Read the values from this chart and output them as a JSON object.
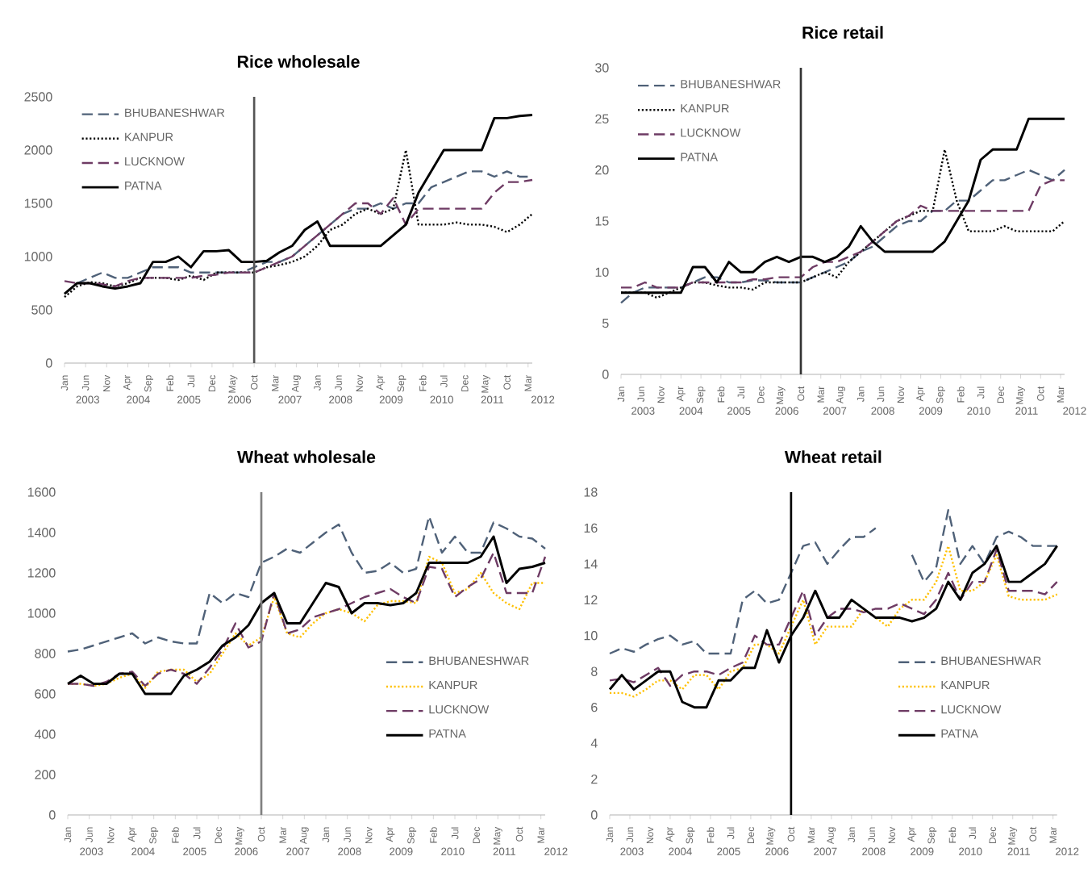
{
  "chart_data": [
    {
      "type": "line",
      "title": "Rice wholesale",
      "legend": "top left",
      "x": [
        "2003-01",
        "2003-04",
        "2003-07",
        "2003-10",
        "2004-01",
        "2004-04",
        "2004-07",
        "2004-10",
        "2005-01",
        "2005-04",
        "2005-07",
        "2005-10",
        "2006-01",
        "2006-04",
        "2006-07",
        "2006-10",
        "2007-01",
        "2007-04",
        "2007-07",
        "2007-10",
        "2008-01",
        "2008-04",
        "2008-07",
        "2008-10",
        "2009-01",
        "2009-04",
        "2009-07",
        "2009-10",
        "2010-01",
        "2010-04",
        "2010-07",
        "2010-10",
        "2011-01",
        "2011-04",
        "2011-07",
        "2011-10",
        "2012-01",
        "2012-04"
      ],
      "xlim": [
        "2003-01",
        "2012-04"
      ],
      "xticks": [
        {
          "value": "2003-01",
          "label": "Jan"
        },
        {
          "value": "2003-06",
          "label": "Jun"
        },
        {
          "value": "2003-11",
          "label": "Nov"
        },
        {
          "value": "2004-04",
          "label": "Apr"
        },
        {
          "value": "2004-09",
          "label": "Sep"
        },
        {
          "value": "2005-02",
          "label": "Feb"
        },
        {
          "value": "2005-07",
          "label": "Jul"
        },
        {
          "value": "2005-12",
          "label": "Dec"
        },
        {
          "value": "2006-05",
          "label": "May"
        },
        {
          "value": "2006-10",
          "label": "Oct"
        },
        {
          "value": "2007-03",
          "label": "Mar"
        },
        {
          "value": "2007-08",
          "label": "Aug"
        },
        {
          "value": "2008-01",
          "label": "Jan"
        },
        {
          "value": "2008-06",
          "label": "Jun"
        },
        {
          "value": "2008-11",
          "label": "Nov"
        },
        {
          "value": "2009-04",
          "label": "Apr"
        },
        {
          "value": "2009-09",
          "label": "Sep"
        },
        {
          "value": "2010-02",
          "label": "Feb"
        },
        {
          "value": "2010-07",
          "label": "Jul"
        },
        {
          "value": "2010-12",
          "label": "Dec"
        },
        {
          "value": "2011-05",
          "label": "May"
        },
        {
          "value": "2011-10",
          "label": "Oct"
        },
        {
          "value": "2012-03",
          "label": "Mar"
        }
      ],
      "ylim": [
        0,
        2500
      ],
      "yticks": [
        0,
        500,
        1000,
        1500,
        2000,
        2500
      ],
      "ref_lines": [
        {
          "axis": "x",
          "value": "2006-10",
          "color": "#555555"
        }
      ],
      "annotations": [
        "2003",
        "2004",
        "2005",
        "2006",
        "2007",
        "2008",
        "2009",
        "2010",
        "2011",
        "2012"
      ],
      "series": [
        {
          "name": "BHUBANESHWAR",
          "color": "#4f6178",
          "line_style": "dashed",
          "values": [
            650,
            750,
            800,
            850,
            800,
            800,
            850,
            900,
            900,
            900,
            850,
            850,
            850,
            850,
            850,
            900,
            950,
            950,
            1000,
            1100,
            1200,
            1300,
            1400,
            1450,
            1450,
            1500,
            1450,
            1500,
            1500,
            1650,
            1700,
            1750,
            1800,
            1800,
            1750,
            1800,
            1750,
            1750
          ]
        },
        {
          "name": "KANPUR",
          "color": "#000000",
          "line_style": "dotted",
          "values": [
            620,
            720,
            760,
            750,
            720,
            750,
            800,
            800,
            800,
            780,
            820,
            780,
            850,
            850,
            850,
            850,
            900,
            920,
            950,
            1000,
            1100,
            1250,
            1300,
            1400,
            1450,
            1400,
            1450,
            2000,
            1300,
            1300,
            1300,
            1320,
            1300,
            1300,
            1280,
            1230,
            1300,
            1400
          ]
        },
        {
          "name": "LUCKNOW",
          "color": "#6e3b64",
          "line_style": "dashed",
          "values": [
            770,
            750,
            750,
            740,
            720,
            770,
            800,
            800,
            800,
            800,
            800,
            820,
            830,
            850,
            850,
            850,
            900,
            950,
            1000,
            1100,
            1200,
            1300,
            1400,
            1500,
            1500,
            1400,
            1550,
            1300,
            1450,
            1450,
            1450,
            1450,
            1450,
            1450,
            1600,
            1700,
            1700,
            1720
          ]
        },
        {
          "name": "PATNA",
          "color": "#000000",
          "line_style": "solid",
          "values": [
            650,
            750,
            750,
            720,
            700,
            720,
            750,
            950,
            950,
            1000,
            900,
            1050,
            1050,
            1060,
            950,
            950,
            960,
            1040,
            1100,
            1250,
            1330,
            1100,
            1100,
            1100,
            1100,
            1100,
            1200,
            1300,
            1600,
            1800,
            2000,
            2000,
            2000,
            2000,
            2300,
            2300,
            2320,
            2330
          ]
        }
      ]
    },
    {
      "type": "line",
      "title": "Rice retail",
      "legend": "top left",
      "x": [
        "2003-01",
        "2003-04",
        "2003-07",
        "2003-10",
        "2004-01",
        "2004-04",
        "2004-07",
        "2004-10",
        "2005-01",
        "2005-04",
        "2005-07",
        "2005-10",
        "2006-01",
        "2006-04",
        "2006-07",
        "2006-10",
        "2007-01",
        "2007-04",
        "2007-07",
        "2007-10",
        "2008-01",
        "2008-04",
        "2008-07",
        "2008-10",
        "2009-01",
        "2009-04",
        "2009-07",
        "2009-10",
        "2010-01",
        "2010-04",
        "2010-07",
        "2010-10",
        "2011-01",
        "2011-04",
        "2011-07",
        "2011-10",
        "2012-01",
        "2012-04"
      ],
      "xlim": [
        "2003-01",
        "2012-04"
      ],
      "xticks": [
        {
          "value": "2003-01",
          "label": "Jan"
        },
        {
          "value": "2003-06",
          "label": "Jun"
        },
        {
          "value": "2003-11",
          "label": "Nov"
        },
        {
          "value": "2004-04",
          "label": "Apr"
        },
        {
          "value": "2004-09",
          "label": "Sep"
        },
        {
          "value": "2005-02",
          "label": "Feb"
        },
        {
          "value": "2005-07",
          "label": "Jul"
        },
        {
          "value": "2005-12",
          "label": "Dec"
        },
        {
          "value": "2006-05",
          "label": "May"
        },
        {
          "value": "2006-10",
          "label": "Oct"
        },
        {
          "value": "2007-03",
          "label": "Mar"
        },
        {
          "value": "2007-08",
          "label": "Aug"
        },
        {
          "value": "2008-01",
          "label": "Jan"
        },
        {
          "value": "2008-06",
          "label": "Jun"
        },
        {
          "value": "2008-11",
          "label": "Nov"
        },
        {
          "value": "2009-04",
          "label": "Apr"
        },
        {
          "value": "2009-09",
          "label": "Sep"
        },
        {
          "value": "2010-02",
          "label": "Feb"
        },
        {
          "value": "2010-07",
          "label": "Jul"
        },
        {
          "value": "2010-12",
          "label": "Dec"
        },
        {
          "value": "2011-05",
          "label": "May"
        },
        {
          "value": "2011-10",
          "label": "Oct"
        },
        {
          "value": "2012-03",
          "label": "Mar"
        }
      ],
      "ylim": [
        0,
        30
      ],
      "yticks": [
        0,
        5,
        10,
        15,
        20,
        25,
        30
      ],
      "ref_lines": [
        {
          "axis": "x",
          "value": "2006-10",
          "color": "#333333"
        }
      ],
      "annotations": [
        "2003",
        "2004",
        "2005",
        "2006",
        "2007",
        "2008",
        "2009",
        "2010",
        "2011",
        "2012"
      ],
      "series": [
        {
          "name": "BHUBANESHWAR",
          "color": "#4f6178",
          "line_style": "dashed",
          "values": [
            7,
            8,
            8.5,
            8.5,
            8.5,
            8.5,
            9,
            9.5,
            9.5,
            9,
            9,
            9.2,
            9.2,
            9,
            9,
            9,
            9.5,
            10,
            10.5,
            11,
            12,
            12.5,
            13.5,
            14.5,
            15,
            15,
            16,
            16,
            17,
            17,
            18,
            19,
            19,
            19.5,
            20,
            19.5,
            19,
            20
          ]
        },
        {
          "name": "KANPUR",
          "color": "#000000",
          "line_style": "dotted",
          "values": [
            8,
            8,
            8,
            7.5,
            8,
            8.5,
            9,
            9,
            8.7,
            8.5,
            8.5,
            8.3,
            9,
            9,
            9,
            9,
            9.5,
            10,
            9.5,
            11,
            12,
            13,
            14,
            15,
            15.5,
            16,
            16,
            22,
            17,
            14,
            14,
            14,
            14.5,
            14,
            14,
            14,
            14,
            15
          ]
        },
        {
          "name": "LUCKNOW",
          "color": "#6e3b64",
          "line_style": "dashed",
          "values": [
            8.5,
            8.5,
            9,
            8.5,
            8.5,
            8.5,
            9,
            9,
            9,
            9,
            9,
            9.3,
            9.3,
            9.5,
            9.5,
            9.5,
            10.5,
            11,
            11,
            11.5,
            12,
            13,
            14,
            15,
            15.5,
            16.5,
            16,
            16,
            16,
            16,
            16,
            16,
            16,
            16,
            16,
            18.5,
            19,
            19
          ]
        },
        {
          "name": "PATNA",
          "color": "#000000",
          "line_style": "solid",
          "values": [
            8,
            8,
            8,
            8,
            8,
            8,
            10.5,
            10.5,
            9,
            11,
            10,
            10,
            11,
            11.5,
            11,
            11.5,
            11.5,
            11,
            11.5,
            12.5,
            14.5,
            13,
            12,
            12,
            12,
            12,
            12,
            13,
            15,
            17,
            21,
            22,
            22,
            22,
            25,
            25,
            25,
            25
          ]
        }
      ]
    },
    {
      "type": "line",
      "title": "Wheat wholesale",
      "legend": "right",
      "x": [
        "2003-01",
        "2003-04",
        "2003-07",
        "2003-10",
        "2004-01",
        "2004-04",
        "2004-07",
        "2004-10",
        "2005-01",
        "2005-04",
        "2005-07",
        "2005-10",
        "2006-01",
        "2006-04",
        "2006-07",
        "2006-10",
        "2007-01",
        "2007-04",
        "2007-07",
        "2007-10",
        "2008-01",
        "2008-04",
        "2008-07",
        "2008-10",
        "2009-01",
        "2009-04",
        "2009-07",
        "2009-10",
        "2010-01",
        "2010-04",
        "2010-07",
        "2010-10",
        "2011-01",
        "2011-04",
        "2011-07",
        "2011-10",
        "2012-01",
        "2012-04"
      ],
      "xlim": [
        "2003-01",
        "2012-04"
      ],
      "xticks": [
        {
          "value": "2003-01",
          "label": "Jan"
        },
        {
          "value": "2003-06",
          "label": "Jun"
        },
        {
          "value": "2003-11",
          "label": "Nov"
        },
        {
          "value": "2004-04",
          "label": "Apr"
        },
        {
          "value": "2004-09",
          "label": "Sep"
        },
        {
          "value": "2005-02",
          "label": "Feb"
        },
        {
          "value": "2005-07",
          "label": "Jul"
        },
        {
          "value": "2005-12",
          "label": "Dec"
        },
        {
          "value": "2006-05",
          "label": "May"
        },
        {
          "value": "2006-10",
          "label": "Oct"
        },
        {
          "value": "2007-03",
          "label": "Mar"
        },
        {
          "value": "2007-08",
          "label": "Aug"
        },
        {
          "value": "2008-01",
          "label": "Jan"
        },
        {
          "value": "2008-06",
          "label": "Jun"
        },
        {
          "value": "2008-11",
          "label": "Nov"
        },
        {
          "value": "2009-04",
          "label": "Apr"
        },
        {
          "value": "2009-09",
          "label": "Sep"
        },
        {
          "value": "2010-02",
          "label": "Feb"
        },
        {
          "value": "2010-07",
          "label": "Jul"
        },
        {
          "value": "2010-12",
          "label": "Dec"
        },
        {
          "value": "2011-05",
          "label": "May"
        },
        {
          "value": "2011-10",
          "label": "Oct"
        },
        {
          "value": "2012-03",
          "label": "Mar"
        }
      ],
      "ylim": [
        0,
        1600
      ],
      "yticks": [
        0,
        200,
        400,
        600,
        800,
        1000,
        1200,
        1400,
        1600
      ],
      "ref_lines": [
        {
          "axis": "x",
          "value": "2006-10",
          "color": "#808080"
        }
      ],
      "annotations": [
        "2003",
        "2004",
        "2005",
        "2006",
        "2007",
        "2008",
        "2009",
        "2010",
        "2011",
        "2012"
      ],
      "series": [
        {
          "name": "BHUBANESHWAR",
          "color": "#4f6178",
          "line_style": "dashed",
          "values": [
            810,
            820,
            840,
            860,
            880,
            900,
            850,
            880,
            860,
            850,
            850,
            1100,
            1050,
            1100,
            1080,
            1250,
            1280,
            1320,
            1300,
            1350,
            1400,
            1440,
            1300,
            1200,
            1210,
            1250,
            1200,
            1220,
            1480,
            1300,
            1380,
            1300,
            1300,
            1450,
            1420,
            1380,
            1370,
            1320
          ]
        },
        {
          "name": "KANPUR",
          "color": "#ffc000",
          "line_style": "dotted",
          "values": [
            650,
            650,
            640,
            650,
            680,
            700,
            630,
            710,
            720,
            720,
            660,
            700,
            800,
            900,
            840,
            880,
            1080,
            900,
            880,
            950,
            1000,
            1020,
            1000,
            960,
            1040,
            1060,
            1060,
            1050,
            1280,
            1250,
            1100,
            1120,
            1200,
            1100,
            1050,
            1020,
            1150,
            1150
          ]
        },
        {
          "name": "LUCKNOW",
          "color": "#6e3b64",
          "line_style": "dashed",
          "values": [
            650,
            650,
            640,
            660,
            700,
            710,
            640,
            700,
            720,
            700,
            650,
            730,
            820,
            950,
            830,
            860,
            1100,
            900,
            920,
            980,
            1000,
            1020,
            1050,
            1080,
            1100,
            1120,
            1080,
            1050,
            1230,
            1220,
            1080,
            1130,
            1170,
            1300,
            1100,
            1100,
            1100,
            1280
          ]
        },
        {
          "name": "PATNA",
          "color": "#000000",
          "line_style": "solid",
          "values": [
            650,
            690,
            650,
            650,
            700,
            700,
            600,
            600,
            600,
            690,
            720,
            760,
            840,
            880,
            940,
            1050,
            1100,
            950,
            950,
            1050,
            1150,
            1130,
            1000,
            1050,
            1050,
            1040,
            1050,
            1100,
            1250,
            1250,
            1250,
            1250,
            1280,
            1380,
            1150,
            1220,
            1230,
            1250
          ]
        }
      ]
    },
    {
      "type": "line",
      "title": "Wheat retail",
      "legend": "right",
      "x": [
        "2003-01",
        "2003-04",
        "2003-07",
        "2003-10",
        "2004-01",
        "2004-04",
        "2004-07",
        "2004-10",
        "2005-01",
        "2005-04",
        "2005-07",
        "2005-10",
        "2006-01",
        "2006-04",
        "2006-07",
        "2006-10",
        "2007-01",
        "2007-04",
        "2007-07",
        "2007-10",
        "2008-01",
        "2008-04",
        "2008-07",
        "2008-10",
        "2009-01",
        "2009-04",
        "2009-07",
        "2009-10",
        "2010-01",
        "2010-04",
        "2010-07",
        "2010-10",
        "2011-01",
        "2011-04",
        "2011-07",
        "2011-10",
        "2012-01",
        "2012-04"
      ],
      "xlim": [
        "2003-01",
        "2012-04"
      ],
      "xticks": [
        {
          "value": "2003-01",
          "label": "Jan"
        },
        {
          "value": "2003-06",
          "label": "Jun"
        },
        {
          "value": "2003-11",
          "label": "Nov"
        },
        {
          "value": "2004-04",
          "label": "Apr"
        },
        {
          "value": "2004-09",
          "label": "Sep"
        },
        {
          "value": "2005-02",
          "label": "Feb"
        },
        {
          "value": "2005-07",
          "label": "Jul"
        },
        {
          "value": "2005-12",
          "label": "Dec"
        },
        {
          "value": "2006-05",
          "label": "May"
        },
        {
          "value": "2006-10",
          "label": "Oct"
        },
        {
          "value": "2007-03",
          "label": "Mar"
        },
        {
          "value": "2007-08",
          "label": "Aug"
        },
        {
          "value": "2008-01",
          "label": "Jan"
        },
        {
          "value": "2008-06",
          "label": "Jun"
        },
        {
          "value": "2008-11",
          "label": "Nov"
        },
        {
          "value": "2009-04",
          "label": "Apr"
        },
        {
          "value": "2009-09",
          "label": "Sep"
        },
        {
          "value": "2010-02",
          "label": "Feb"
        },
        {
          "value": "2010-07",
          "label": "Jul"
        },
        {
          "value": "2010-12",
          "label": "Dec"
        },
        {
          "value": "2011-05",
          "label": "May"
        },
        {
          "value": "2011-10",
          "label": "Oct"
        },
        {
          "value": "2012-03",
          "label": "Mar"
        }
      ],
      "ylim": [
        0,
        18
      ],
      "yticks": [
        0,
        2,
        4,
        6,
        8,
        10,
        12,
        14,
        16,
        18
      ],
      "ref_lines": [
        {
          "axis": "x",
          "value": "2006-10",
          "color": "#000000"
        }
      ],
      "annotations": [
        "2003",
        "2004",
        "2005",
        "2006",
        "2007",
        "2008",
        "2009",
        "2010",
        "2011",
        "2012"
      ],
      "series": [
        {
          "name": "BHUBANESHWAR",
          "color": "#4f6178",
          "line_style": "dashed",
          "values": [
            9,
            9.3,
            9.1,
            9.5,
            9.8,
            10,
            9.5,
            9.7,
            9,
            9,
            9,
            12,
            12.5,
            11.8,
            12,
            13.5,
            15,
            15.2,
            14,
            14.8,
            15.5,
            15.5,
            16,
            null,
            null,
            14.5,
            13,
            13.8,
            17,
            14,
            15,
            14,
            15.5,
            15.8,
            15.5,
            15,
            15,
            15
          ]
        },
        {
          "name": "KANPUR",
          "color": "#ffc000",
          "line_style": "dotted",
          "values": [
            6.8,
            6.8,
            6.6,
            7,
            7.5,
            7.5,
            7,
            7.8,
            7.8,
            7,
            8,
            8.2,
            9.5,
            9.5,
            9,
            10.5,
            12,
            9.5,
            10.5,
            10.5,
            10.5,
            11.5,
            11,
            10.5,
            11.5,
            12,
            12,
            13,
            15,
            12.5,
            12.5,
            13,
            14.5,
            12.2,
            12,
            12,
            12,
            12.3
          ]
        },
        {
          "name": "LUCKNOW",
          "color": "#6e3b64",
          "line_style": "dashed",
          "values": [
            7.5,
            7.6,
            7.4,
            7.8,
            8.2,
            7.2,
            7.8,
            8,
            8,
            7.8,
            8.2,
            8.5,
            10,
            9.5,
            9.5,
            11,
            12.5,
            10,
            11,
            11.5,
            11.5,
            11.3,
            11.5,
            11.5,
            11.8,
            11.5,
            11.2,
            12,
            13.5,
            12,
            13,
            13,
            14.8,
            12.5,
            12.5,
            12.5,
            12.3,
            13
          ]
        },
        {
          "name": "PATNA",
          "color": "#000000",
          "line_style": "solid",
          "values": [
            7,
            7.8,
            7,
            7.5,
            8,
            8,
            6.3,
            6,
            6,
            7.5,
            7.5,
            8.2,
            8.2,
            10.3,
            8.5,
            10,
            11,
            12.5,
            11,
            11,
            12,
            11.5,
            11,
            11,
            11,
            10.8,
            11,
            11.5,
            13,
            12,
            13.5,
            14,
            15,
            13,
            13,
            13.5,
            14,
            15
          ]
        }
      ]
    }
  ]
}
